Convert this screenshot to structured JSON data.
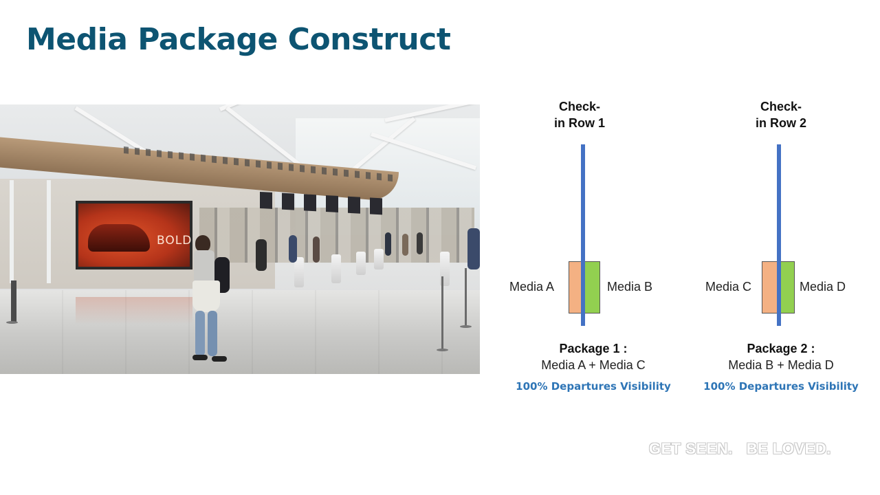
{
  "slide": {
    "title": "Media Package Construct"
  },
  "photo": {
    "billboard_text": "BOLD"
  },
  "diagram": {
    "rows": [
      {
        "heading_line1": "Check-",
        "heading_line2": "in Row 1",
        "left_media": "Media  A",
        "right_media": "Media B",
        "left_color": "#f4b183",
        "right_color": "#92d050"
      },
      {
        "heading_line1": "Check-",
        "heading_line2": "in Row 2",
        "left_media": "Media C",
        "right_media": "Media D",
        "left_color": "#f4b183",
        "right_color": "#92d050"
      }
    ],
    "line_color": "#4472c4",
    "packages": [
      {
        "title": "Package 1 :",
        "contents": "Media A + Media C",
        "visibility": "100% Departures Visibility"
      },
      {
        "title": "Package 2 :",
        "contents": "Media B + Media D",
        "visibility": "100% Departures Visibility"
      }
    ]
  },
  "footer": {
    "tagline": "GET SEEN.   BE LOVED."
  }
}
